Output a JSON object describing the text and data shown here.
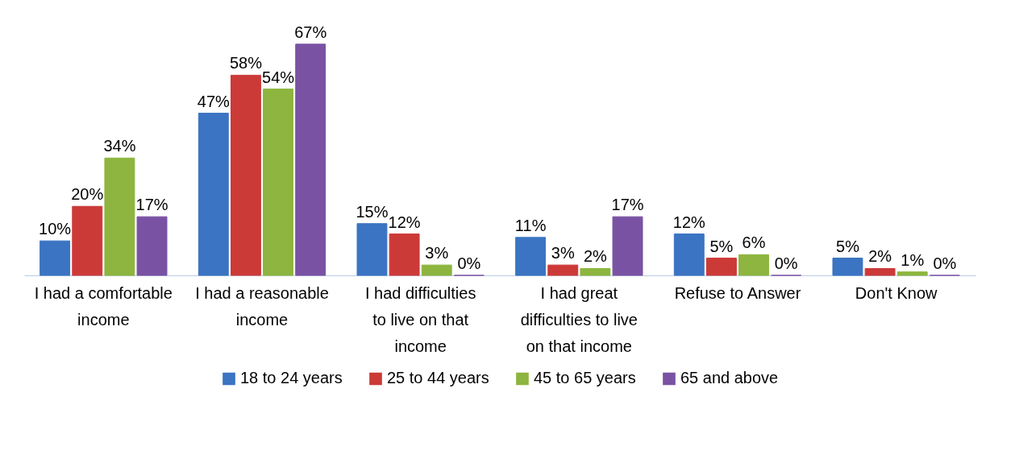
{
  "chart_data": {
    "type": "bar",
    "categories": [
      "I had a comfortable income",
      "I had a reasonable income",
      "I had difficulties to live on that income",
      "I had great difficulties to live on that income",
      "Refuse to Answer",
      "Don't Know"
    ],
    "series": [
      {
        "name": "18 to 24 years",
        "color": "#3b74c2",
        "values": [
          10,
          47,
          15,
          11,
          12,
          5
        ],
        "value_labels": [
          "10%",
          "47%",
          "15%",
          "11%",
          "12%",
          "5%"
        ]
      },
      {
        "name": "25 to 44 years",
        "color": "#cc3a38",
        "values": [
          20,
          58,
          12,
          3,
          5,
          2
        ],
        "value_labels": [
          "20%",
          "58%",
          "12%",
          "3%",
          "5%",
          "2%"
        ]
      },
      {
        "name": "45 to 65 years",
        "color": "#8db53f",
        "values": [
          34,
          54,
          3,
          2,
          6,
          1
        ],
        "value_labels": [
          "34%",
          "54%",
          "3%",
          "2%",
          "6%",
          "1%"
        ]
      },
      {
        "name": "65 and above",
        "color": "#7a52a3",
        "values": [
          17,
          67,
          0,
          17,
          0,
          0
        ],
        "value_labels": [
          "17%",
          "67%",
          "0%",
          "17%",
          "0%",
          "0%"
        ]
      }
    ],
    "legend": "bottom",
    "grid": false
  }
}
